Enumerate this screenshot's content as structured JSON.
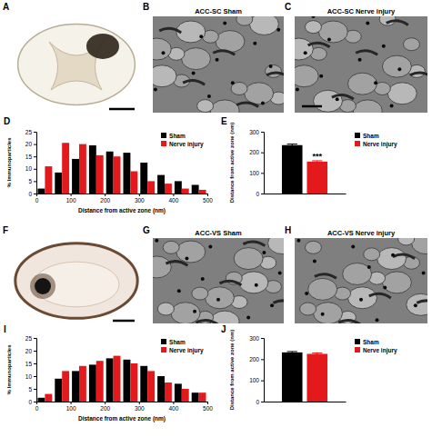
{
  "chart_data": [
    {
      "type": "histogram",
      "panel": "D",
      "xlabel": "Distance from active zone (nm)",
      "ylabel": "% Immunoparticles",
      "bins": [
        0,
        50,
        100,
        150,
        200,
        250,
        300,
        350,
        400,
        450,
        500
      ],
      "series": [
        {
          "name": "Sham",
          "color": "#000000",
          "values": [
            2,
            8.5,
            14,
            19.5,
            17,
            16.5,
            12.5,
            7.5,
            5,
            3.5
          ]
        },
        {
          "name": "Nerve injury",
          "color": "#e3191c",
          "values": [
            11,
            20.5,
            20,
            15.5,
            15,
            9,
            5,
            4,
            2,
            1.5
          ]
        }
      ],
      "xlim": [
        0,
        500
      ],
      "xticks": [
        0,
        100,
        200,
        300,
        400,
        500
      ],
      "ylim": [
        0,
        25
      ],
      "yticks": [
        0,
        5,
        10,
        15,
        20,
        25
      ],
      "legend": "upper right"
    },
    {
      "type": "bar",
      "panel": "E",
      "ylabel": "Distance from active zone (nm)",
      "categories": [
        null
      ],
      "series": [
        {
          "name": "Sham",
          "color": "#000000",
          "values": [
            235
          ],
          "errors": [
            5
          ]
        },
        {
          "name": "Nerve injury",
          "color": "#e3191c",
          "values": [
            155
          ],
          "errors": [
            4
          ],
          "annotation": "***"
        }
      ],
      "ylim": [
        0,
        300
      ],
      "yticks": [
        0,
        100,
        200,
        300
      ],
      "legend": "right"
    },
    {
      "type": "histogram",
      "panel": "I",
      "xlabel": "Distance from active zone (nm)",
      "ylabel": "% Immunoparticles",
      "bins": [
        0,
        50,
        100,
        150,
        200,
        250,
        300,
        350,
        400,
        450,
        500
      ],
      "series": [
        {
          "name": "Sham",
          "color": "#000000",
          "values": [
            1.5,
            9,
            12,
            14.5,
            17,
            16.5,
            14,
            10,
            7,
            3.5
          ]
        },
        {
          "name": "Nerve injury",
          "color": "#e3191c",
          "values": [
            3,
            12,
            14,
            16,
            18,
            15,
            12,
            7.5,
            5,
            3.5
          ]
        }
      ],
      "xlim": [
        0,
        500
      ],
      "xticks": [
        0,
        100,
        200,
        300,
        400,
        500
      ],
      "ylim": [
        0,
        25
      ],
      "yticks": [
        0,
        5,
        10,
        15,
        20,
        25
      ],
      "legend": "upper right"
    },
    {
      "type": "bar",
      "panel": "J",
      "ylabel": "Distance from active zone (nm)",
      "categories": [
        null
      ],
      "series": [
        {
          "name": "Sham",
          "color": "#000000",
          "values": [
            232
          ],
          "errors": [
            4
          ]
        },
        {
          "name": "Nerve injury",
          "color": "#e3191c",
          "values": [
            225
          ],
          "errors": [
            4
          ]
        }
      ],
      "ylim": [
        0,
        300
      ],
      "yticks": [
        0,
        100,
        200,
        300
      ],
      "legend": "right"
    }
  ],
  "images": [
    {
      "panel": "A"
    },
    {
      "panel": "B",
      "title": "ACC-SC Sham"
    },
    {
      "panel": "C",
      "title": "ACC-SC Nerve injury"
    },
    {
      "panel": "F"
    },
    {
      "panel": "G",
      "title": "ACC-VS Sham"
    },
    {
      "panel": "H",
      "title": "ACC-VS Nerve injury"
    }
  ]
}
